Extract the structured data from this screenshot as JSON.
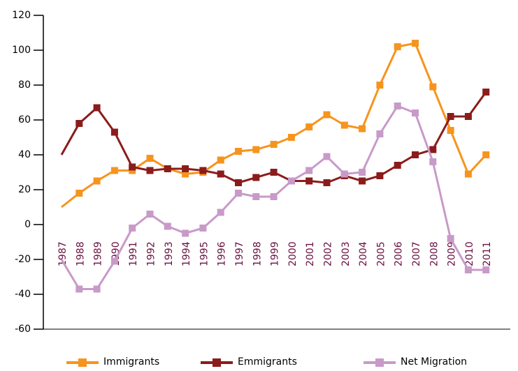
{
  "chart_data": {
    "type": "line",
    "categories": [
      "1987",
      "1988",
      "1989",
      "1990",
      "1991",
      "1992",
      "1993",
      "1994",
      "1995",
      "1996",
      "1997",
      "1998",
      "1999",
      "2000",
      "2001",
      "2002",
      "2003",
      "2004",
      "2005",
      "2006",
      "2007",
      "2008",
      "2009",
      "2010",
      "2011"
    ],
    "series": [
      {
        "name": "Immigrants",
        "color": "#f7941d",
        "values": [
          10,
          18,
          25,
          31,
          31,
          38,
          32,
          29,
          30,
          37,
          42,
          43,
          46,
          50,
          56,
          63,
          57,
          55,
          80,
          102,
          104,
          79,
          54,
          29,
          40
        ]
      },
      {
        "name": "Emmigrants",
        "color": "#8b1c1c",
        "values": [
          40,
          58,
          67,
          53,
          33,
          31,
          32,
          32,
          31,
          29,
          24,
          27,
          30,
          25,
          25,
          24,
          28,
          25,
          28,
          34,
          40,
          43,
          62,
          62,
          76
        ]
      },
      {
        "name": "Net Migration",
        "color": "#c89ac8",
        "values": [
          -20,
          -37,
          -37,
          -21,
          -2,
          6,
          -1,
          -5,
          -2,
          7,
          18,
          16,
          16,
          25,
          31,
          39,
          29,
          30,
          52,
          68,
          64,
          36,
          -8,
          -26,
          -26
        ]
      }
    ],
    "ylim": [
      -60,
      120
    ],
    "yticks": [
      -60,
      -40,
      -20,
      0,
      20,
      40,
      60,
      80,
      100,
      120
    ]
  }
}
